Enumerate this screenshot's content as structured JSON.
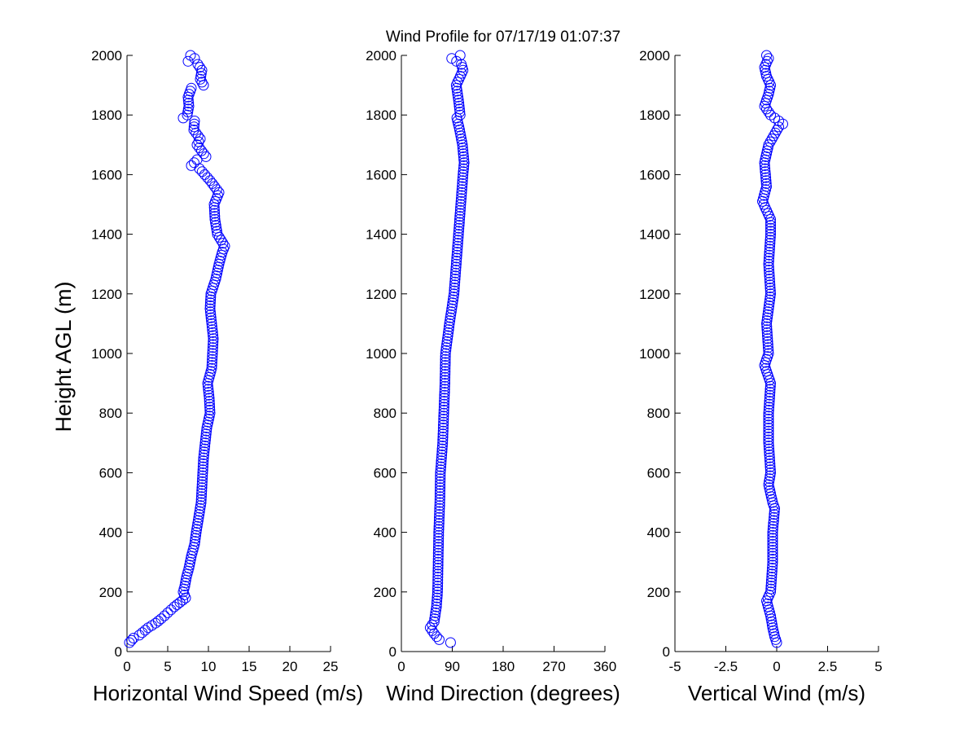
{
  "figure": {
    "title": "Wind Profile for  07/17/19 01:07:37"
  },
  "colors": {
    "marker": "#0000ff",
    "axes": "#000000",
    "background": "#ffffff"
  },
  "chart_data": [
    {
      "type": "scatter",
      "title": "",
      "xlabel": "Horizontal Wind Speed (m/s)",
      "ylabel": "Height AGL (m)",
      "xlim": [
        0,
        25
      ],
      "ylim": [
        0,
        2000
      ],
      "xticks": [
        "0",
        "5",
        "10",
        "15",
        "20",
        "25"
      ],
      "yticks": [
        "0",
        "200",
        "400",
        "600",
        "800",
        "1000",
        "1200",
        "1400",
        "1600",
        "1800",
        "2000"
      ],
      "grid": false,
      "marker": "open-circle",
      "profile": [
        [
          30,
          0.3
        ],
        [
          45,
          0.8
        ],
        [
          55,
          1.5
        ],
        [
          80,
          2.6
        ],
        [
          95,
          3.5
        ],
        [
          110,
          4.2
        ],
        [
          130,
          5.0
        ],
        [
          150,
          5.8
        ],
        [
          165,
          6.5
        ],
        [
          180,
          7.2
        ],
        [
          200,
          6.9
        ],
        [
          220,
          7.1
        ],
        [
          250,
          7.3
        ],
        [
          280,
          7.6
        ],
        [
          320,
          7.9
        ],
        [
          360,
          8.3
        ],
        [
          400,
          8.5
        ],
        [
          450,
          8.8
        ],
        [
          500,
          9.1
        ],
        [
          550,
          9.2
        ],
        [
          600,
          9.3
        ],
        [
          650,
          9.4
        ],
        [
          700,
          9.6
        ],
        [
          750,
          9.8
        ],
        [
          800,
          10.2
        ],
        [
          850,
          10.1
        ],
        [
          900,
          9.9
        ],
        [
          950,
          10.4
        ],
        [
          1000,
          10.5
        ],
        [
          1050,
          10.6
        ],
        [
          1100,
          10.4
        ],
        [
          1150,
          10.2
        ],
        [
          1200,
          10.3
        ],
        [
          1250,
          10.9
        ],
        [
          1300,
          11.3
        ],
        [
          1340,
          11.7
        ],
        [
          1360,
          12.0
        ],
        [
          1400,
          11.1
        ],
        [
          1450,
          10.8
        ],
        [
          1500,
          10.7
        ],
        [
          1540,
          11.3
        ],
        [
          1580,
          10.2
        ],
        [
          1620,
          8.9
        ],
        [
          1630,
          7.9
        ],
        [
          1650,
          8.6
        ],
        [
          1660,
          9.7
        ],
        [
          1700,
          8.6
        ],
        [
          1720,
          9.0
        ],
        [
          1750,
          8.2
        ],
        [
          1780,
          8.3
        ],
        [
          1790,
          6.9
        ],
        [
          1800,
          7.4
        ],
        [
          1830,
          7.6
        ],
        [
          1860,
          7.5
        ],
        [
          1890,
          7.9
        ],
        [
          1900,
          9.4
        ],
        [
          1920,
          9.0
        ],
        [
          1950,
          9.2
        ],
        [
          1970,
          8.7
        ],
        [
          1980,
          7.5
        ],
        [
          1990,
          8.3
        ],
        [
          2000,
          7.8
        ]
      ]
    },
    {
      "type": "scatter",
      "title": "",
      "xlabel": "Wind Direction (degrees)",
      "ylabel": "",
      "xlim": [
        0,
        360
      ],
      "ylim": [
        0,
        2000
      ],
      "xticks": [
        "0",
        "90",
        "180",
        "270",
        "360"
      ],
      "yticks": [
        "0",
        "200",
        "400",
        "600",
        "800",
        "1000",
        "1200",
        "1400",
        "1600",
        "1800",
        "2000"
      ],
      "grid": false,
      "marker": "open-circle",
      "profile": [
        [
          30,
          87
        ],
        [
          40,
          67
        ],
        [
          60,
          58
        ],
        [
          80,
          51
        ],
        [
          100,
          58
        ],
        [
          150,
          62
        ],
        [
          200,
          64
        ],
        [
          300,
          65
        ],
        [
          400,
          66
        ],
        [
          500,
          68
        ],
        [
          600,
          69
        ],
        [
          700,
          73
        ],
        [
          800,
          75
        ],
        [
          900,
          77
        ],
        [
          1000,
          78
        ],
        [
          1100,
          85
        ],
        [
          1200,
          93
        ],
        [
          1300,
          97
        ],
        [
          1400,
          101
        ],
        [
          1500,
          105
        ],
        [
          1600,
          109
        ],
        [
          1640,
          111
        ],
        [
          1700,
          108
        ],
        [
          1750,
          103
        ],
        [
          1790,
          98
        ],
        [
          1800,
          104
        ],
        [
          1850,
          101
        ],
        [
          1900,
          97
        ],
        [
          1950,
          109
        ],
        [
          1970,
          106
        ],
        [
          1990,
          89
        ],
        [
          2000,
          104
        ]
      ]
    },
    {
      "type": "scatter",
      "title": "",
      "xlabel": "Vertical Wind (m/s)",
      "ylabel": "",
      "xlim": [
        -5,
        5
      ],
      "ylim": [
        0,
        2000
      ],
      "xticks": [
        "-5",
        "-2.5",
        "0",
        "2.5",
        "5"
      ],
      "yticks": [
        "0",
        "200",
        "400",
        "600",
        "800",
        "1000",
        "1200",
        "1400",
        "1600",
        "1800",
        "2000"
      ],
      "grid": false,
      "marker": "open-circle",
      "profile": [
        [
          30,
          0.0
        ],
        [
          50,
          -0.1
        ],
        [
          80,
          -0.2
        ],
        [
          120,
          -0.3
        ],
        [
          170,
          -0.5
        ],
        [
          200,
          -0.3
        ],
        [
          300,
          -0.2
        ],
        [
          400,
          -0.2
        ],
        [
          480,
          -0.1
        ],
        [
          500,
          -0.2
        ],
        [
          560,
          -0.4
        ],
        [
          600,
          -0.3
        ],
        [
          700,
          -0.4
        ],
        [
          800,
          -0.4
        ],
        [
          900,
          -0.3
        ],
        [
          960,
          -0.6
        ],
        [
          1000,
          -0.4
        ],
        [
          1100,
          -0.5
        ],
        [
          1200,
          -0.3
        ],
        [
          1300,
          -0.4
        ],
        [
          1400,
          -0.3
        ],
        [
          1450,
          -0.3
        ],
        [
          1510,
          -0.7
        ],
        [
          1560,
          -0.5
        ],
        [
          1640,
          -0.6
        ],
        [
          1700,
          -0.4
        ],
        [
          1760,
          0.1
        ],
        [
          1770,
          0.3
        ],
        [
          1800,
          -0.3
        ],
        [
          1830,
          -0.6
        ],
        [
          1870,
          -0.4
        ],
        [
          1900,
          -0.3
        ],
        [
          1930,
          -0.5
        ],
        [
          1960,
          -0.6
        ],
        [
          1990,
          -0.4
        ],
        [
          2000,
          -0.5
        ]
      ]
    }
  ]
}
